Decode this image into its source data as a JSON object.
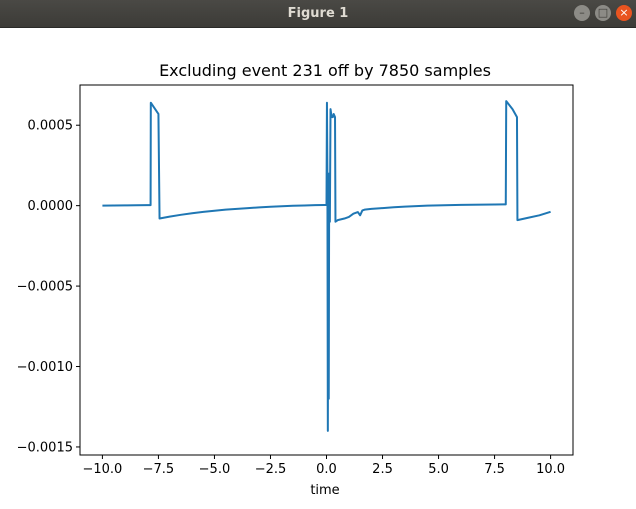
{
  "window": {
    "title": "Figure 1",
    "buttons": {
      "minimize": "minimize-icon",
      "maximize": "maximize-icon",
      "close": "close-icon"
    }
  },
  "colors": {
    "line": "#1f77b4",
    "titlebar": "#3c3b37",
    "close": "#e95420"
  },
  "chart_data": {
    "type": "line",
    "title": "Excluding event 231 off by 7850 samples",
    "xlabel": "time",
    "ylabel": "",
    "xlim": [
      -11.0,
      11.0
    ],
    "ylim": [
      -0.00155,
      0.00075
    ],
    "xticks": [
      -10.0,
      -7.5,
      -5.0,
      -2.5,
      0.0,
      2.5,
      5.0,
      7.5,
      10.0
    ],
    "xtick_labels": [
      "−10.0",
      "−7.5",
      "−5.0",
      "−2.5",
      "0.0",
      "2.5",
      "5.0",
      "7.5",
      "10.0"
    ],
    "yticks": [
      0.0005,
      0.0,
      -0.0005,
      -0.001,
      -0.0015
    ],
    "ytick_labels": [
      "0.0005",
      "0.0000",
      "−0.0005",
      "−0.0010",
      "−0.0015"
    ],
    "grid": false,
    "series": [
      {
        "x": [
          -10.0,
          -9.5,
          -9.0,
          -8.5,
          -8.0,
          -7.85,
          -7.84,
          -7.55,
          -7.5,
          -7.45,
          -7.0,
          -6.5,
          -6.0,
          -5.5,
          -5.0,
          -4.5,
          -4.0,
          -3.5,
          -3.0,
          -2.5,
          -2.0,
          -1.5,
          -1.0,
          -0.5,
          -0.1,
          0.0,
          0.02,
          0.04,
          0.06,
          0.08,
          0.1,
          0.12,
          0.15,
          0.18,
          0.2,
          0.22,
          0.25,
          0.28,
          0.32,
          0.35,
          0.38,
          0.4,
          0.45,
          0.5,
          0.8,
          1.0,
          1.2,
          1.4,
          1.5,
          1.6,
          1.7,
          2.0,
          2.5,
          3.0,
          3.5,
          4.0,
          4.5,
          5.0,
          5.5,
          6.0,
          6.5,
          7.0,
          7.5,
          7.9,
          8.0,
          8.02,
          8.3,
          8.5,
          8.52,
          9.0,
          9.5,
          10.0
        ],
        "y": [
          0.0,
          8e-07,
          1.5e-06,
          2.2e-06,
          3e-06,
          3.5e-06,
          0.00064,
          0.00058,
          0.00057,
          -8e-05,
          -6.8e-05,
          -5.7e-05,
          -4.7e-05,
          -3.9e-05,
          -3.2e-05,
          -2.5e-05,
          -2e-05,
          -1.5e-05,
          -1.1e-05,
          -7e-06,
          -4e-06,
          -1e-06,
          1e-06,
          3e-06,
          4e-06,
          4e-06,
          0.00064,
          0.0002,
          -0.0014,
          0.0001,
          -0.0012,
          0.0002,
          -0.0001,
          0.0006,
          0.00058,
          0.00056,
          0.00055,
          0.00055,
          0.00057,
          0.00056,
          0.00055,
          -0.0001,
          -9.5e-05,
          -9e-05,
          -8e-05,
          -7e-05,
          -5e-05,
          -4e-05,
          -6e-05,
          -3e-05,
          -2.5e-05,
          -2e-05,
          -1.5e-05,
          -1e-05,
          -6e-06,
          -3e-06,
          0.0,
          2e-06,
          3.5e-06,
          4.5e-06,
          5.5e-06,
          6.5e-06,
          7.5e-06,
          8e-06,
          8e-06,
          0.00065,
          0.0006,
          0.00055,
          -9e-05,
          -7.5e-05,
          -6e-05,
          -3.8e-05
        ]
      }
    ]
  }
}
